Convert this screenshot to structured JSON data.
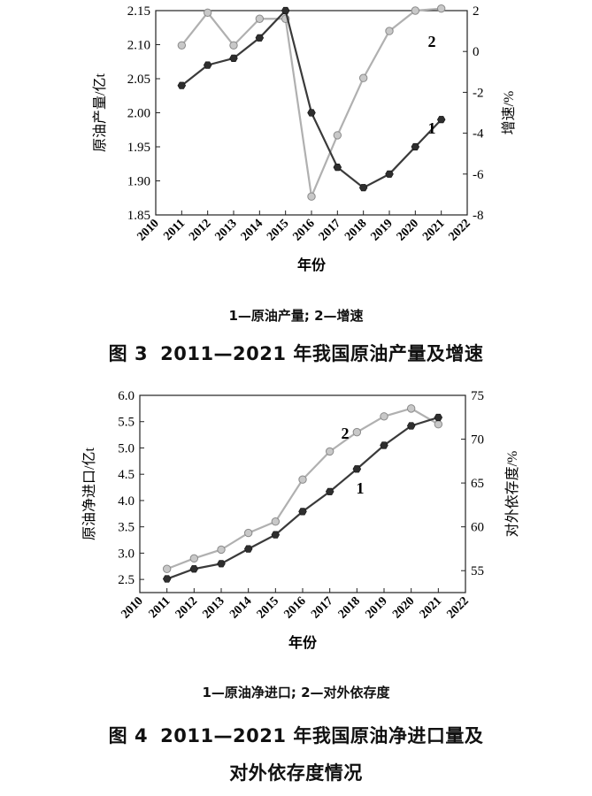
{
  "chart_data": [
    {
      "type": "line",
      "x": [
        2011,
        2012,
        2013,
        2014,
        2015,
        2016,
        2017,
        2018,
        2019,
        2020,
        2021
      ],
      "xticks": [
        2010,
        2011,
        2012,
        2013,
        2014,
        2015,
        2016,
        2017,
        2018,
        2019,
        2020,
        2021,
        2022
      ],
      "xlim": [
        2010,
        2022
      ],
      "xlabel": "年份",
      "ylabel": "原油产量/亿t",
      "ylim": [
        1.85,
        2.15
      ],
      "yticks": [
        "1.85",
        "1.90",
        "1.95",
        "2.00",
        "2.05",
        "2.10",
        "2.15"
      ],
      "y2label": "增速/%",
      "y2lim": [
        -8,
        2
      ],
      "y2ticks": [
        "-8",
        "-6",
        "-4",
        "-2",
        "0",
        "2"
      ],
      "series": [
        {
          "label": "1",
          "axis": "left",
          "color": "#3a3a3a",
          "values": [
            2.04,
            2.07,
            2.08,
            2.11,
            2.15,
            2.0,
            1.92,
            1.89,
            1.91,
            1.95,
            1.99
          ]
        },
        {
          "label": "2",
          "axis": "right",
          "color": "#b0b0b0",
          "values": [
            0.3,
            1.9,
            0.3,
            1.6,
            1.6,
            -7.1,
            -4.1,
            -1.3,
            1.0,
            2.0,
            2.1
          ]
        }
      ],
      "legend": "1—原油产量; 2—增速",
      "caption_label": "图 3",
      "caption": "2011—2021 年我国原油产量及增速"
    },
    {
      "type": "line",
      "x": [
        2011,
        2012,
        2013,
        2014,
        2015,
        2016,
        2017,
        2018,
        2019,
        2020,
        2021
      ],
      "xticks": [
        2010,
        2011,
        2012,
        2013,
        2014,
        2015,
        2016,
        2017,
        2018,
        2019,
        2020,
        2021,
        2022
      ],
      "xlim": [
        2010,
        2022
      ],
      "xlabel": "年份",
      "ylabel": "原油净进口/亿t",
      "ylim": [
        2.25,
        6.0
      ],
      "yticks": [
        "2.5",
        "3.0",
        "3.5",
        "4.0",
        "4.5",
        "5.0",
        "5.5",
        "6.0"
      ],
      "y2label": "对外依存度/%",
      "y2lim": [
        52.5,
        75
      ],
      "y2ticks": [
        "55",
        "60",
        "65",
        "70",
        "75"
      ],
      "series": [
        {
          "label": "1",
          "axis": "left",
          "color": "#3a3a3a",
          "values": [
            2.51,
            2.7,
            2.8,
            3.08,
            3.35,
            3.79,
            4.17,
            4.6,
            5.05,
            5.42,
            5.58
          ]
        },
        {
          "label": "2",
          "axis": "right",
          "color": "#b0b0b0",
          "values": [
            55.2,
            56.4,
            57.4,
            59.3,
            60.6,
            65.4,
            68.6,
            70.8,
            72.6,
            73.5,
            71.7
          ]
        }
      ],
      "legend": "1—原油净进口; 2—对外依存度",
      "caption_label": "图 4",
      "caption": "2011—2021 年我国原油净进口量及",
      "caption2": "对外依存度情况"
    }
  ]
}
